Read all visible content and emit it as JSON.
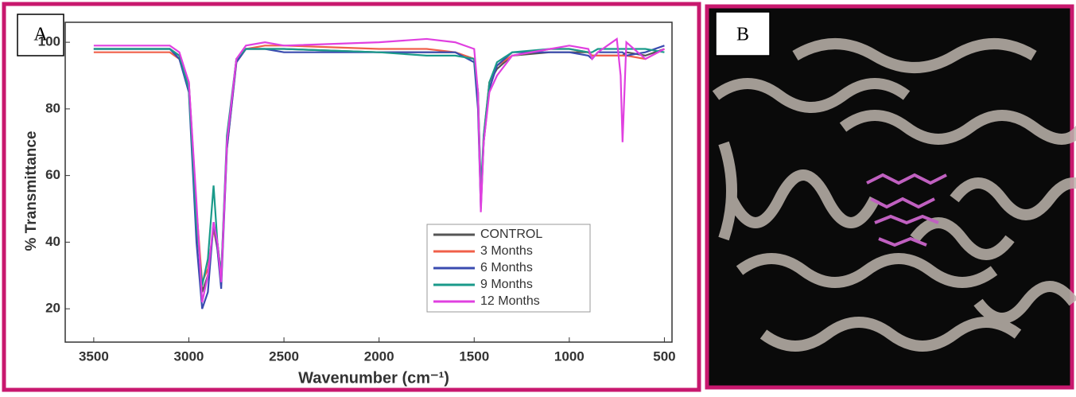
{
  "panels": [
    {
      "label": "A"
    },
    {
      "label": "B"
    }
  ],
  "chart_data": {
    "type": "line",
    "xlabel": "Wavenumber (cm⁻¹)",
    "ylabel": "% Transmittance",
    "x": [
      3500,
      3100,
      3050,
      3000,
      2960,
      2930,
      2900,
      2870,
      2850,
      2830,
      2800,
      2750,
      2700,
      2600,
      2500,
      2000,
      1750,
      1600,
      1500,
      1480,
      1465,
      1450,
      1420,
      1380,
      1300,
      1100,
      1000,
      900,
      880,
      850,
      750,
      730,
      720,
      700,
      600,
      500
    ],
    "series": [
      {
        "name": "CONTROL",
        "color": "#555555",
        "values": [
          98,
          98,
          96,
          88,
          50,
          25,
          30,
          45,
          40,
          30,
          70,
          95,
          98,
          98,
          98,
          97,
          97,
          97,
          95,
          85,
          55,
          70,
          88,
          92,
          96,
          97,
          97,
          97,
          96,
          96,
          96,
          96,
          96,
          97,
          96,
          98
        ]
      },
      {
        "name": "3 Months",
        "color": "#f0604a",
        "values": [
          97,
          97,
          95,
          86,
          50,
          28,
          32,
          44,
          38,
          28,
          68,
          94,
          98,
          99,
          99,
          98,
          98,
          97,
          95,
          82,
          52,
          72,
          88,
          93,
          96,
          98,
          98,
          97,
          96,
          96,
          96,
          96,
          96,
          96,
          95,
          98
        ]
      },
      {
        "name": "6 Months",
        "color": "#3a4bb0",
        "values": [
          98,
          98,
          95,
          85,
          40,
          20,
          25,
          46,
          38,
          26,
          68,
          94,
          98,
          98,
          97,
          97,
          97,
          97,
          94,
          80,
          50,
          70,
          86,
          93,
          97,
          97,
          97,
          96,
          95,
          97,
          97,
          97,
          97,
          96,
          97,
          99
        ]
      },
      {
        "name": "9 Months",
        "color": "#1a9a8a",
        "values": [
          98,
          98,
          96,
          86,
          45,
          27,
          35,
          57,
          40,
          30,
          72,
          95,
          98,
          98,
          98,
          97,
          96,
          96,
          95,
          85,
          55,
          72,
          88,
          94,
          97,
          98,
          98,
          97,
          97,
          98,
          98,
          98,
          98,
          98,
          98,
          97
        ]
      },
      {
        "name": "12 Months",
        "color": "#e040e0",
        "values": [
          99,
          99,
          97,
          88,
          52,
          22,
          30,
          46,
          40,
          28,
          70,
          95,
          99,
          100,
          99,
          100,
          101,
          100,
          98,
          85,
          49,
          70,
          85,
          90,
          96,
          98,
          99,
          98,
          95,
          97,
          101,
          90,
          70,
          100,
          95,
          98
        ]
      }
    ],
    "xlim": [
      3650,
      460
    ],
    "ylim": [
      10,
      106
    ],
    "xticks": [
      3500,
      3000,
      2500,
      2000,
      1500,
      1000,
      500
    ],
    "yticks": [
      20,
      40,
      60,
      80,
      100
    ],
    "legend": "lower-right"
  }
}
